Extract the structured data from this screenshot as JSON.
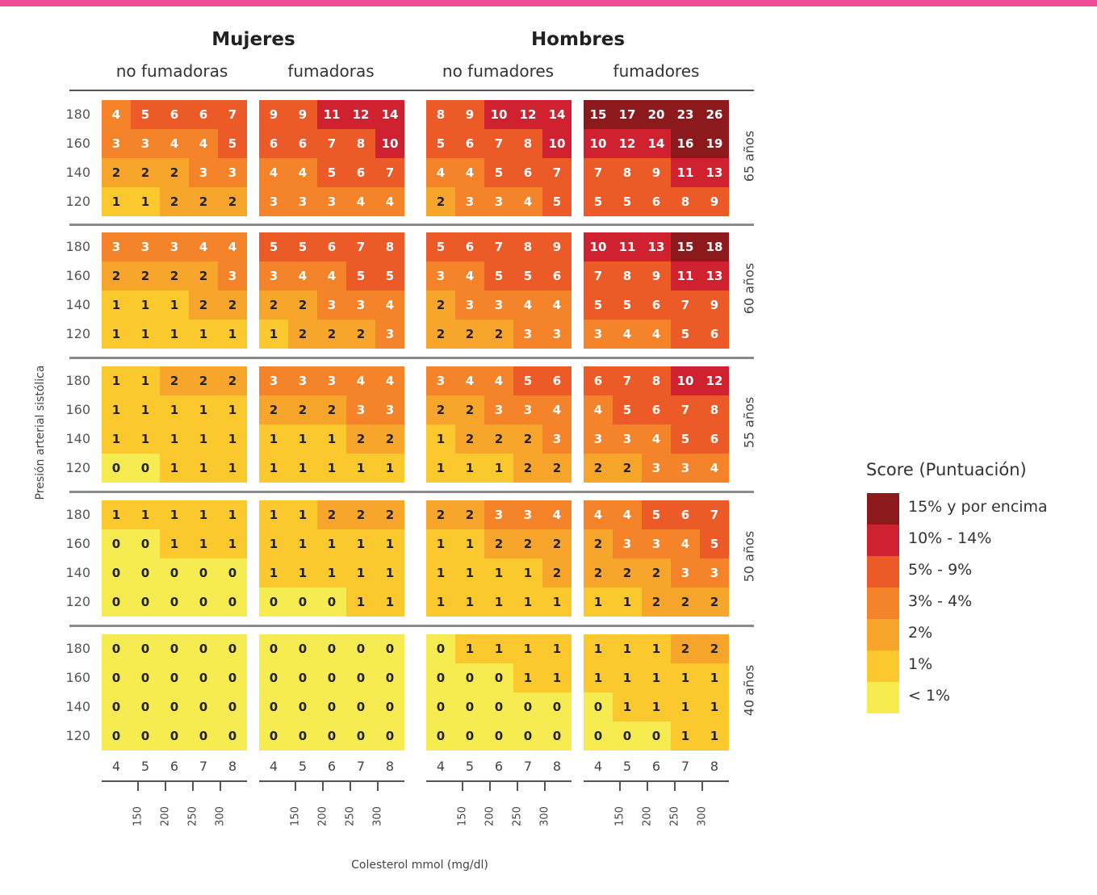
{
  "chart_data": {
    "type": "heatmap",
    "ylabel": "Presión arterial sistólica",
    "xlabel": "Colesterol mmol (mg/dl)",
    "sex_groups": [
      {
        "label": "Mujeres",
        "subgroups": [
          "no fumadoras",
          "fumadoras"
        ]
      },
      {
        "label": "Hombres",
        "subgroups": [
          "no fumadores",
          "fumadores"
        ]
      }
    ],
    "sbp_levels": [
      "180",
      "160",
      "140",
      "120"
    ],
    "chol_mmol": [
      "4",
      "5",
      "6",
      "7",
      "8"
    ],
    "chol_mgdl": [
      "150",
      "200",
      "250",
      "300"
    ],
    "legend": {
      "title": "Score (Puntuación)",
      "items": [
        {
          "label": "15% y por encima",
          "color": "#8c1a1d"
        },
        {
          "label": "10% - 14%",
          "color": "#cf2130"
        },
        {
          "label": "5% - 9%",
          "color": "#ec5a28"
        },
        {
          "label": "3% - 4%",
          "color": "#f4832a"
        },
        {
          "label": "2%",
          "color": "#f8a52c"
        },
        {
          "label": "1%",
          "color": "#fbc92e"
        },
        {
          "label": "< 1%",
          "color": "#f6ec52"
        }
      ]
    },
    "age_blocks": [
      {
        "age": "65 años",
        "panels": [
          [
            [
              4,
              5,
              6,
              6,
              7
            ],
            [
              3,
              3,
              4,
              4,
              5
            ],
            [
              2,
              2,
              2,
              3,
              3
            ],
            [
              1,
              1,
              2,
              2,
              2
            ]
          ],
          [
            [
              9,
              9,
              11,
              12,
              14
            ],
            [
              6,
              6,
              7,
              8,
              10
            ],
            [
              4,
              4,
              5,
              6,
              7
            ],
            [
              3,
              3,
              3,
              4,
              4
            ]
          ],
          [
            [
              8,
              9,
              10,
              12,
              14
            ],
            [
              5,
              6,
              7,
              8,
              10
            ],
            [
              4,
              4,
              5,
              6,
              7
            ],
            [
              2,
              3,
              3,
              4,
              5
            ]
          ],
          [
            [
              15,
              17,
              20,
              23,
              26
            ],
            [
              10,
              12,
              14,
              16,
              19
            ],
            [
              7,
              8,
              9,
              11,
              13
            ],
            [
              5,
              5,
              6,
              8,
              9
            ]
          ]
        ]
      },
      {
        "age": "60 años",
        "panels": [
          [
            [
              3,
              3,
              3,
              4,
              4
            ],
            [
              2,
              2,
              2,
              2,
              3
            ],
            [
              1,
              1,
              1,
              2,
              2
            ],
            [
              1,
              1,
              1,
              1,
              1
            ]
          ],
          [
            [
              5,
              5,
              6,
              7,
              8
            ],
            [
              3,
              4,
              4,
              5,
              5
            ],
            [
              2,
              2,
              3,
              3,
              4
            ],
            [
              1,
              2,
              2,
              2,
              3
            ]
          ],
          [
            [
              5,
              6,
              7,
              8,
              9
            ],
            [
              3,
              4,
              5,
              5,
              6
            ],
            [
              2,
              3,
              3,
              4,
              4
            ],
            [
              2,
              2,
              2,
              3,
              3
            ]
          ],
          [
            [
              10,
              11,
              13,
              15,
              18
            ],
            [
              7,
              8,
              9,
              11,
              13
            ],
            [
              5,
              5,
              6,
              7,
              9
            ],
            [
              3,
              4,
              4,
              5,
              6
            ]
          ]
        ]
      },
      {
        "age": "55 años",
        "panels": [
          [
            [
              1,
              1,
              2,
              2,
              2
            ],
            [
              1,
              1,
              1,
              1,
              1
            ],
            [
              1,
              1,
              1,
              1,
              1
            ],
            [
              0,
              0,
              1,
              1,
              1
            ]
          ],
          [
            [
              3,
              3,
              3,
              4,
              4
            ],
            [
              2,
              2,
              2,
              3,
              3
            ],
            [
              1,
              1,
              1,
              2,
              2
            ],
            [
              1,
              1,
              1,
              1,
              1
            ]
          ],
          [
            [
              3,
              4,
              4,
              5,
              6
            ],
            [
              2,
              2,
              3,
              3,
              4
            ],
            [
              1,
              2,
              2,
              2,
              3
            ],
            [
              1,
              1,
              1,
              2,
              2
            ]
          ],
          [
            [
              6,
              7,
              8,
              10,
              12
            ],
            [
              4,
              5,
              6,
              7,
              8
            ],
            [
              3,
              3,
              4,
              5,
              6
            ],
            [
              2,
              2,
              3,
              3,
              4
            ]
          ]
        ]
      },
      {
        "age": "50 años",
        "panels": [
          [
            [
              1,
              1,
              1,
              1,
              1
            ],
            [
              0,
              0,
              1,
              1,
              1
            ],
            [
              0,
              0,
              0,
              0,
              0
            ],
            [
              0,
              0,
              0,
              0,
              0
            ]
          ],
          [
            [
              1,
              1,
              2,
              2,
              2
            ],
            [
              1,
              1,
              1,
              1,
              1
            ],
            [
              1,
              1,
              1,
              1,
              1
            ],
            [
              0,
              0,
              0,
              1,
              1
            ]
          ],
          [
            [
              2,
              2,
              3,
              3,
              4
            ],
            [
              1,
              1,
              2,
              2,
              2
            ],
            [
              1,
              1,
              1,
              1,
              2
            ],
            [
              1,
              1,
              1,
              1,
              1
            ]
          ],
          [
            [
              4,
              4,
              5,
              6,
              7
            ],
            [
              2,
              3,
              3,
              4,
              5
            ],
            [
              2,
              2,
              2,
              3,
              3
            ],
            [
              1,
              1,
              2,
              2,
              2
            ]
          ]
        ]
      },
      {
        "age": "40 años",
        "panels": [
          [
            [
              0,
              0,
              0,
              0,
              0
            ],
            [
              0,
              0,
              0,
              0,
              0
            ],
            [
              0,
              0,
              0,
              0,
              0
            ],
            [
              0,
              0,
              0,
              0,
              0
            ]
          ],
          [
            [
              0,
              0,
              0,
              0,
              0
            ],
            [
              0,
              0,
              0,
              0,
              0
            ],
            [
              0,
              0,
              0,
              0,
              0
            ],
            [
              0,
              0,
              0,
              0,
              0
            ]
          ],
          [
            [
              0,
              1,
              1,
              1,
              1
            ],
            [
              0,
              0,
              0,
              1,
              1
            ],
            [
              0,
              0,
              0,
              0,
              0
            ],
            [
              0,
              0,
              0,
              0,
              0
            ]
          ],
          [
            [
              1,
              1,
              1,
              2,
              2
            ],
            [
              1,
              1,
              1,
              1,
              1
            ],
            [
              0,
              1,
              1,
              1,
              1
            ],
            [
              0,
              0,
              0,
              1,
              1
            ]
          ]
        ]
      }
    ]
  }
}
